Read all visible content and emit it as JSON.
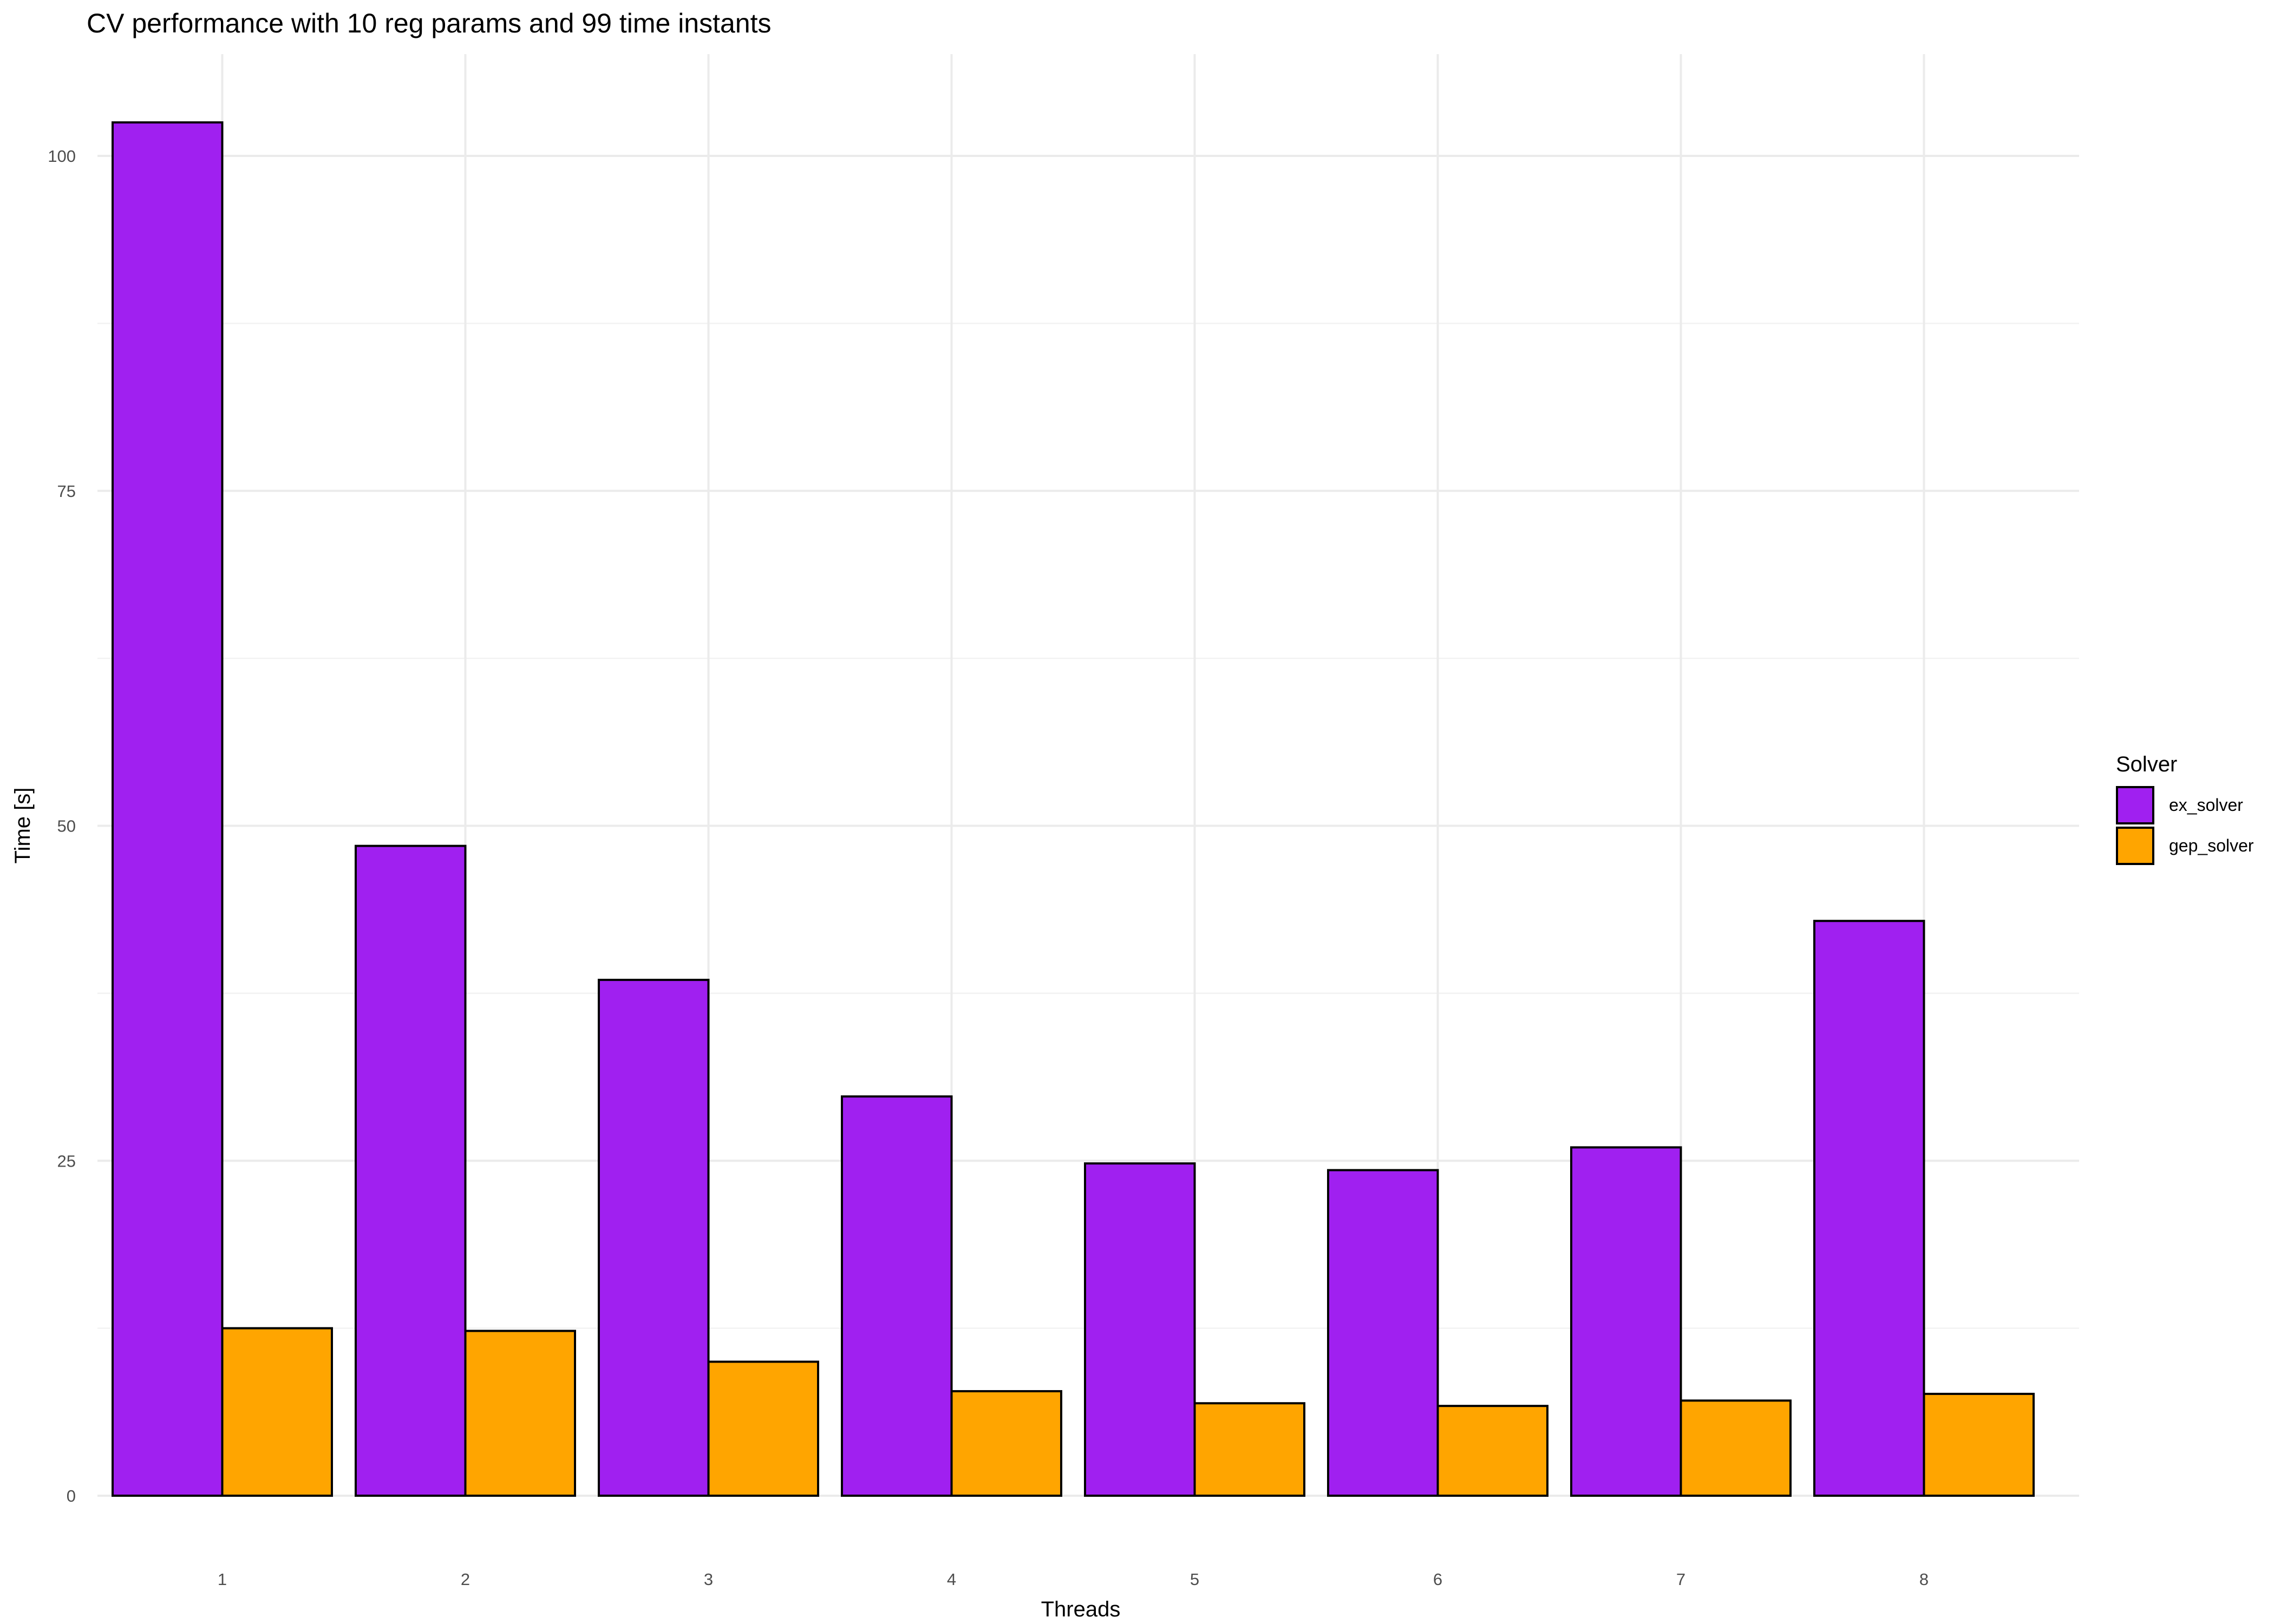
{
  "chart_data": {
    "type": "bar",
    "title": "CV performance with 10 reg params and 99 time instants",
    "xlabel": "Threads",
    "ylabel": "Time [s]",
    "categories": [
      "1",
      "2",
      "3",
      "4",
      "5",
      "6",
      "7",
      "8"
    ],
    "series": [
      {
        "name": "ex_solver",
        "color": "#a020f0",
        "values": [
          102.5,
          48.5,
          38.5,
          29.8,
          24.8,
          24.3,
          26.0,
          42.9
        ]
      },
      {
        "name": "gep_solver",
        "color": "#ffa500",
        "values": [
          12.5,
          12.3,
          10.0,
          7.8,
          6.9,
          6.7,
          7.1,
          7.6
        ]
      }
    ],
    "ylim": [
      0,
      105
    ],
    "yticks": [
      0,
      25,
      50,
      75,
      100
    ],
    "grid": true,
    "legend": {
      "title": "Solver",
      "position": "right"
    }
  }
}
